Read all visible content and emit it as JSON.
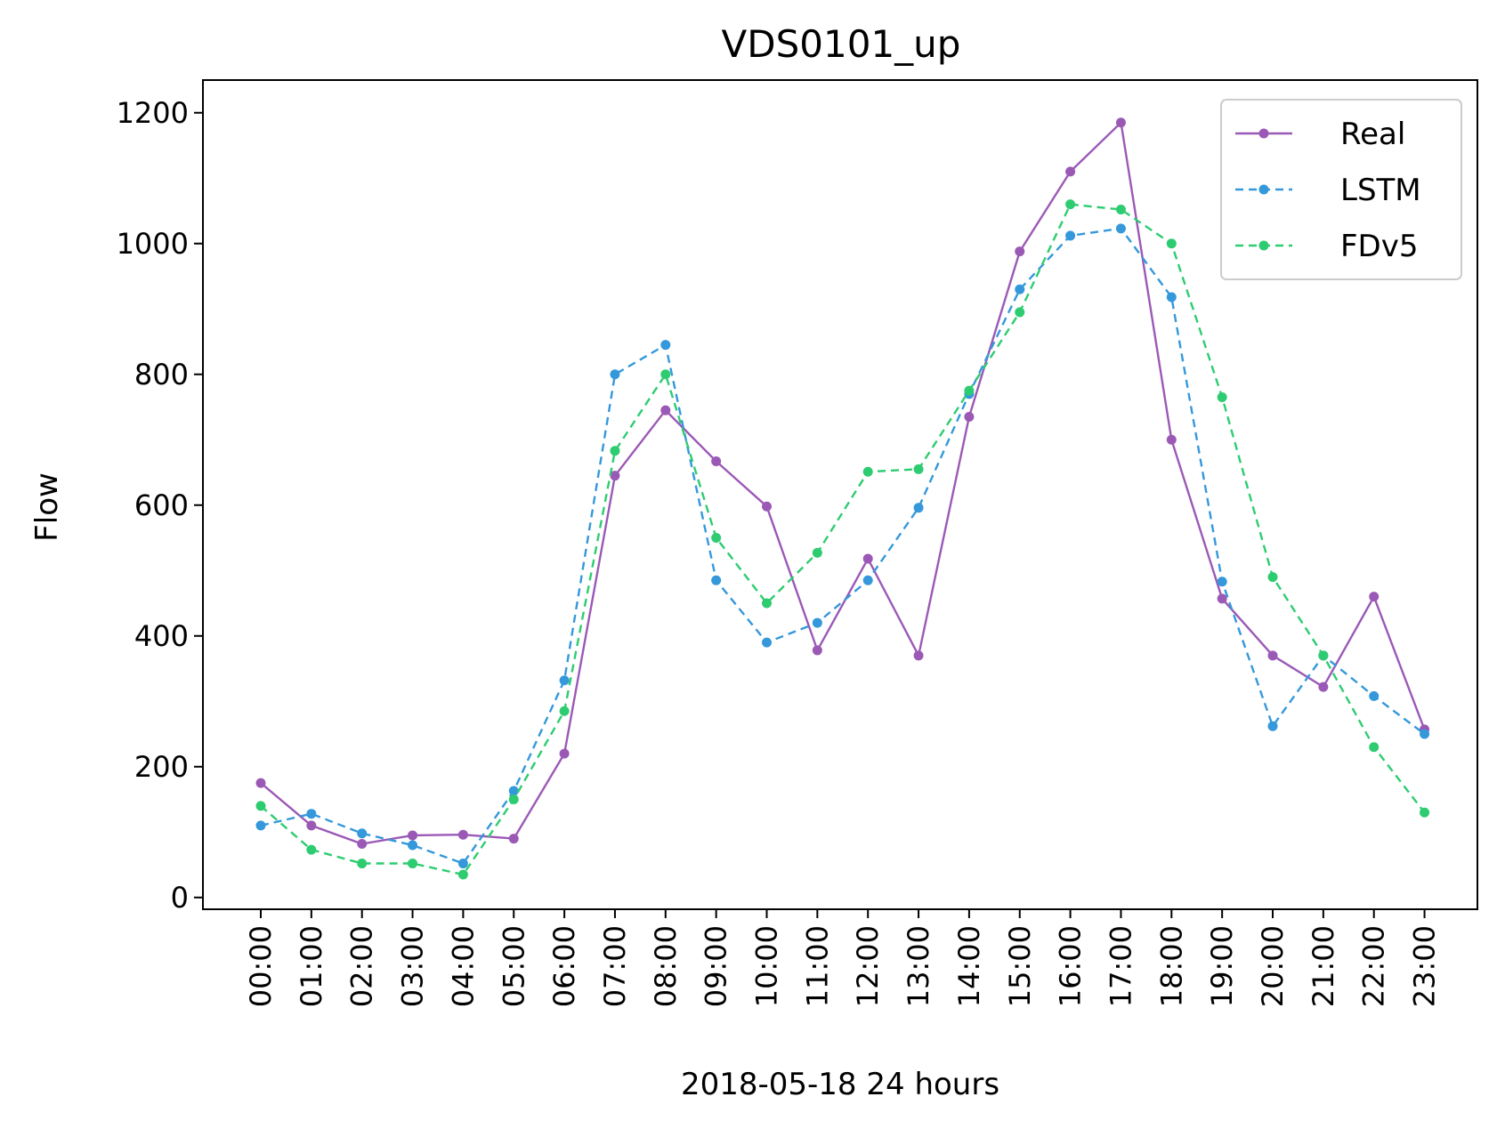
{
  "chart_data": {
    "type": "line",
    "title": "VDS0101_up",
    "xlabel": "2018-05-18 24 hours",
    "ylabel": "Flow",
    "categories": [
      "00:00",
      "01:00",
      "02:00",
      "03:00",
      "04:00",
      "05:00",
      "06:00",
      "07:00",
      "08:00",
      "09:00",
      "10:00",
      "11:00",
      "12:00",
      "13:00",
      "14:00",
      "15:00",
      "16:00",
      "17:00",
      "18:00",
      "19:00",
      "20:00",
      "21:00",
      "22:00",
      "23:00"
    ],
    "yticks": [
      0,
      200,
      400,
      600,
      800,
      1000,
      1200
    ],
    "ylim": [
      -18,
      1250
    ],
    "grid": false,
    "legend": "top-right",
    "series": [
      {
        "name": "Real",
        "color": "#9b59b6",
        "style": "solid",
        "values": [
          175,
          110,
          82,
          95,
          96,
          90,
          220,
          645,
          745,
          667,
          598,
          378,
          518,
          370,
          735,
          988,
          1110,
          1185,
          700,
          457,
          370,
          322,
          460,
          257
        ]
      },
      {
        "name": "LSTM",
        "color": "#3498db",
        "style": "dashed",
        "values": [
          110,
          128,
          98,
          80,
          52,
          163,
          332,
          800,
          845,
          485,
          390,
          420,
          485,
          596,
          770,
          930,
          1012,
          1023,
          918,
          483,
          262,
          370,
          308,
          250
        ]
      },
      {
        "name": "FDv5",
        "color": "#2ecc71",
        "style": "dashed",
        "values": [
          140,
          73,
          52,
          52,
          35,
          150,
          285,
          683,
          800,
          550,
          450,
          527,
          651,
          655,
          775,
          895,
          1060,
          1052,
          1000,
          765,
          490,
          370,
          230,
          130
        ]
      }
    ]
  }
}
